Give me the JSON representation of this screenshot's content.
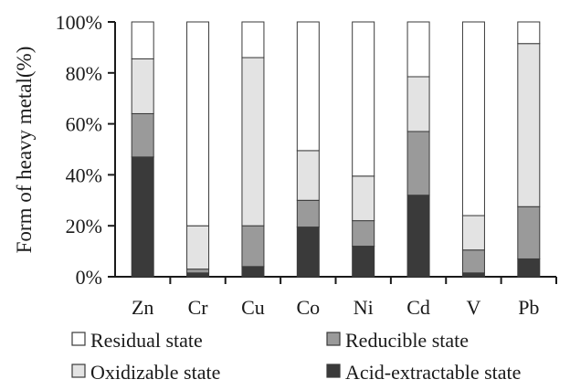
{
  "chart_data": {
    "type": "bar",
    "stacked": "percent",
    "categories": [
      "Zn",
      "Cr",
      "Cu",
      "Co",
      "Ni",
      "Cd",
      "V",
      "Pb"
    ],
    "series": [
      {
        "name": "Acid-extractable state",
        "color": "#3a3a3a",
        "values": [
          47,
          1.5,
          4,
          19.5,
          12,
          32,
          1.5,
          7
        ]
      },
      {
        "name": "Reducible state",
        "color": "#9a9a9a",
        "values": [
          17,
          1.5,
          16,
          10.5,
          10,
          25,
          9,
          20.5
        ]
      },
      {
        "name": "Oxidizable state",
        "color": "#e3e3e3",
        "values": [
          21.5,
          17,
          66,
          19.5,
          17.5,
          21.5,
          13.5,
          64
        ]
      },
      {
        "name": "Residual state",
        "color": "#ffffff",
        "values": [
          14.5,
          80,
          14,
          50.5,
          60.5,
          21.5,
          76,
          8.5
        ]
      }
    ],
    "ylabel": "Form of heavy metal(%)",
    "xlabel": "",
    "ylim": [
      0,
      100
    ],
    "yticks": [
      "0%",
      "20%",
      "40%",
      "60%",
      "80%",
      "100%"
    ],
    "grid": false,
    "legend": {
      "placement": "bottom",
      "order": [
        "Residual state",
        "Reducible state",
        "Oxidizable state",
        "Acid-extractable state"
      ]
    }
  }
}
